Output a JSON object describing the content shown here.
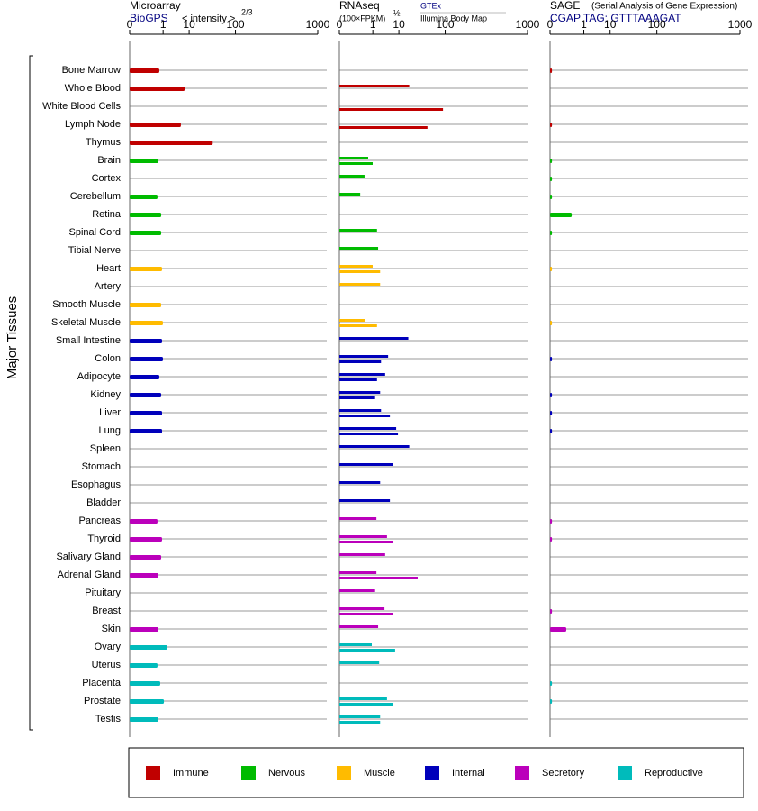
{
  "chart_data": {
    "type": "bar",
    "orientation": "horizontal",
    "axis_title": "Major Tissues",
    "categories": [
      "Bone Marrow",
      "Whole Blood",
      "White Blood Cells",
      "Lymph Node",
      "Thymus",
      "Brain",
      "Cortex",
      "Cerebellum",
      "Retina",
      "Spinal Cord",
      "Tibial Nerve",
      "Heart",
      "Artery",
      "Smooth Muscle",
      "Skeletal Muscle",
      "Small Intestine",
      "Colon",
      "Adipocyte",
      "Kidney",
      "Liver",
      "Lung",
      "Spleen",
      "Stomach",
      "Esophagus",
      "Bladder",
      "Pancreas",
      "Thyroid",
      "Salivary Gland",
      "Adrenal Gland",
      "Pituitary",
      "Breast",
      "Skin",
      "Ovary",
      "Uterus",
      "Placenta",
      "Prostate",
      "Testis"
    ],
    "colors": [
      "#c00000",
      "#c00000",
      "#c00000",
      "#c00000",
      "#c00000",
      "#00bb00",
      "#00bb00",
      "#00bb00",
      "#00bb00",
      "#00bb00",
      "#00bb00",
      "#ffbb00",
      "#ffbb00",
      "#ffbb00",
      "#ffbb00",
      "#0000bb",
      "#0000bb",
      "#0000bb",
      "#0000bb",
      "#0000bb",
      "#0000bb",
      "#0000bb",
      "#0000bb",
      "#0000bb",
      "#0000bb",
      "#bb00bb",
      "#bb00bb",
      "#bb00bb",
      "#bb00bb",
      "#bb00bb",
      "#bb00bb",
      "#bb00bb",
      "#00bbbb",
      "#00bbbb",
      "#00bbbb",
      "#00bbbb",
      "#00bbbb"
    ],
    "legend": [
      {
        "name": "Immune",
        "color": "#c00000"
      },
      {
        "name": "Nervous",
        "color": "#00bb00"
      },
      {
        "name": "Muscle",
        "color": "#ffbb00"
      },
      {
        "name": "Internal",
        "color": "#0000bb"
      },
      {
        "name": "Secretory",
        "color": "#bb00bb"
      },
      {
        "name": "Reproductive",
        "color": "#00bbbb"
      }
    ],
    "panels": [
      {
        "title": "Microarray",
        "source": "BioGPS",
        "scale_label": "< intensity >",
        "scale_exponent_label": "2/3",
        "xscale": "power",
        "exponent": 0.25,
        "xlim": [
          0,
          1000
        ],
        "xticks": [
          0,
          1,
          10,
          100,
          1000
        ],
        "series": [
          {
            "name": "BioGPS",
            "values": [
              0.62,
              7.3,
              null,
              5.5,
              38,
              0.55,
              null,
              0.48,
              0.79,
              0.79,
              null,
              0.88,
              null,
              0.79,
              0.98,
              0.88,
              0.98,
              0.62,
              0.79,
              0.88,
              0.88,
              null,
              null,
              null,
              null,
              0.48,
              0.88,
              0.79,
              0.55,
              null,
              null,
              0.55,
              1.6,
              0.48,
              0.7,
              1.1,
              0.55
            ]
          }
        ]
      },
      {
        "title": "RNAseq",
        "scale_label": "(100×FPKM)",
        "scale_exponent_label": "½",
        "xscale": "power",
        "exponent": 0.25,
        "xlim": [
          0,
          1000
        ],
        "xticks": [
          0,
          1,
          10,
          100,
          1000
        ],
        "series": [
          {
            "name": "GTEx",
            "values": [
              null,
              19,
              null,
              null,
              null,
              0.55,
              0.32,
              0.15,
              null,
              1.6,
              1.8,
              0.98,
              2.2,
              null,
              0.37,
              18,
              4.5,
              3.5,
              2.2,
              2.4,
              8.3,
              19,
              6.4,
              2.2,
              5.2,
              1.5,
              4.1,
              3.5,
              1.5,
              1.3,
              3.3,
              1.8,
              0.88,
              2.0,
              null,
              4.1,
              2.2
            ]
          },
          {
            "name": "Illumina Body Map",
            "values": [
              null,
              null,
              92,
              48,
              null,
              0.98,
              null,
              null,
              null,
              null,
              null,
              2.2,
              null,
              null,
              1.6,
              null,
              2.4,
              1.6,
              1.3,
              5.2,
              9.4,
              null,
              null,
              null,
              null,
              null,
              6.4,
              null,
              30,
              null,
              6.4,
              null,
              7.7,
              null,
              null,
              6.4,
              2.2
            ]
          }
        ]
      },
      {
        "title": "SAGE",
        "subtitle": "(Serial Analysis of Gene Expression)",
        "source": "CGAP TAG: GTTTAAAGAT",
        "xscale": "power",
        "exponent": 0.25,
        "xlim": [
          0,
          1000
        ],
        "xticks": [
          0,
          1,
          10,
          100,
          1000
        ],
        "series": [
          {
            "name": "CGAP",
            "values": [
              1e-05,
              null,
              null,
              1e-05,
              null,
              1e-05,
              1e-05,
              1e-05,
              0.17,
              1e-05,
              null,
              1e-05,
              null,
              null,
              1e-05,
              null,
              1e-05,
              null,
              1e-05,
              1e-05,
              1e-05,
              null,
              null,
              null,
              null,
              1e-05,
              1e-05,
              null,
              null,
              null,
              1e-05,
              0.053,
              null,
              null,
              1e-05,
              1e-05,
              null
            ]
          }
        ]
      }
    ]
  }
}
